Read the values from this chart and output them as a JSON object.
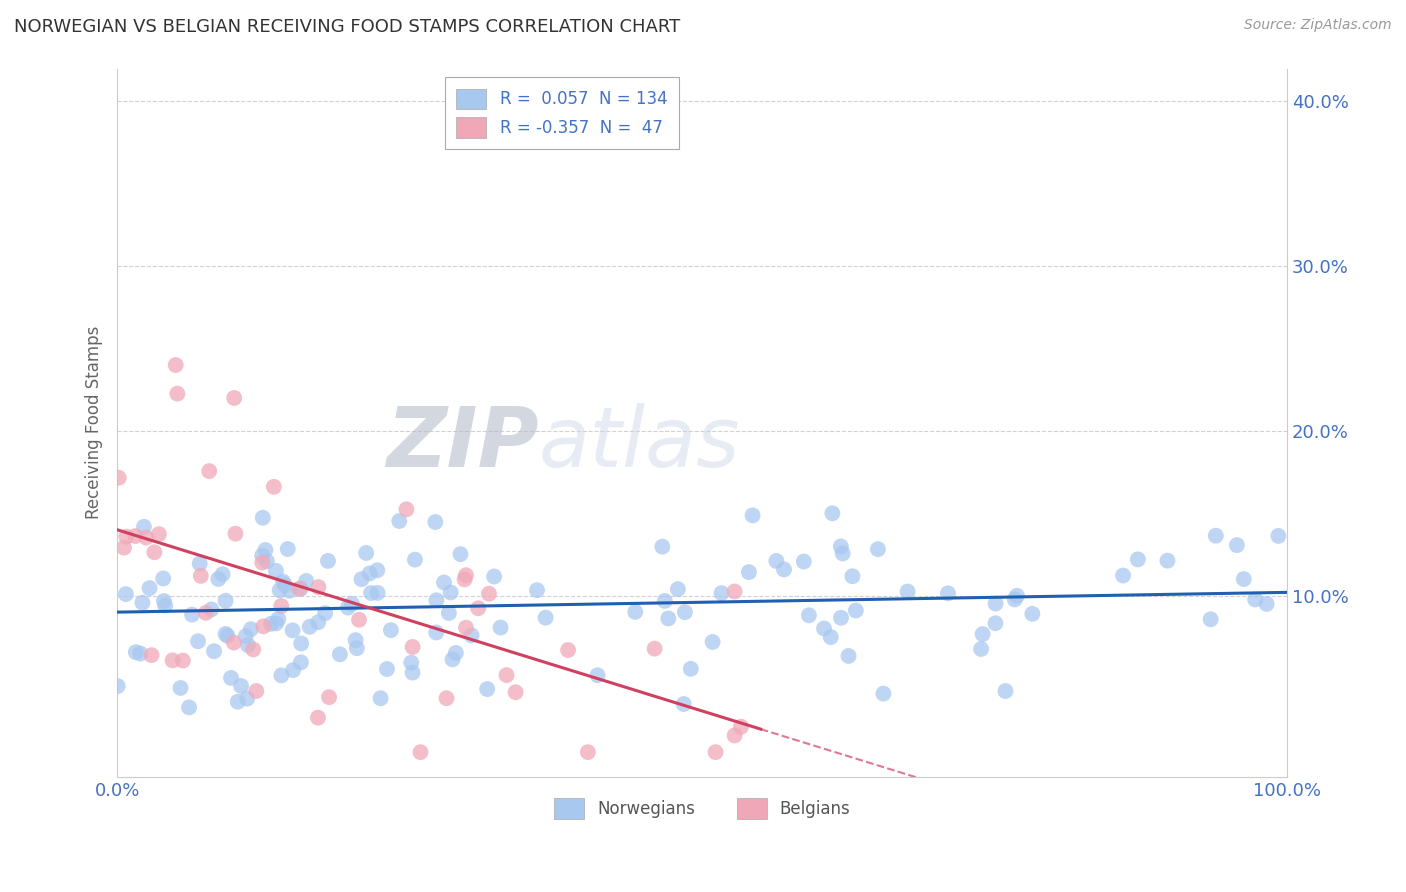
{
  "title": "NORWEGIAN VS BELGIAN RECEIVING FOOD STAMPS CORRELATION CHART",
  "source": "Source: ZipAtlas.com",
  "ylabel": "Receiving Food Stamps",
  "watermark_left": "ZIP",
  "watermark_right": "atlas",
  "xlim": [
    0,
    100
  ],
  "ylim": [
    -1,
    42
  ],
  "norwegian_color": "#a8c8f0",
  "belgian_color": "#f0a8b8",
  "norwegian_line_color": "#2060b0",
  "belgian_line_color": "#d04060",
  "legend_norwegian_label": "R =  0.057  N = 134",
  "legend_belgian_label": "R = -0.357  N =  47",
  "legend_title_norwegian": "Norwegians",
  "legend_title_belgian": "Belgians",
  "norwegian_R": 0.057,
  "norwegian_N": 134,
  "belgian_R": -0.357,
  "belgian_N": 47,
  "background_color": "#ffffff",
  "grid_color": "#cccccc",
  "title_color": "#333333",
  "axis_label_color": "#666666",
  "tick_color": "#4472c4"
}
